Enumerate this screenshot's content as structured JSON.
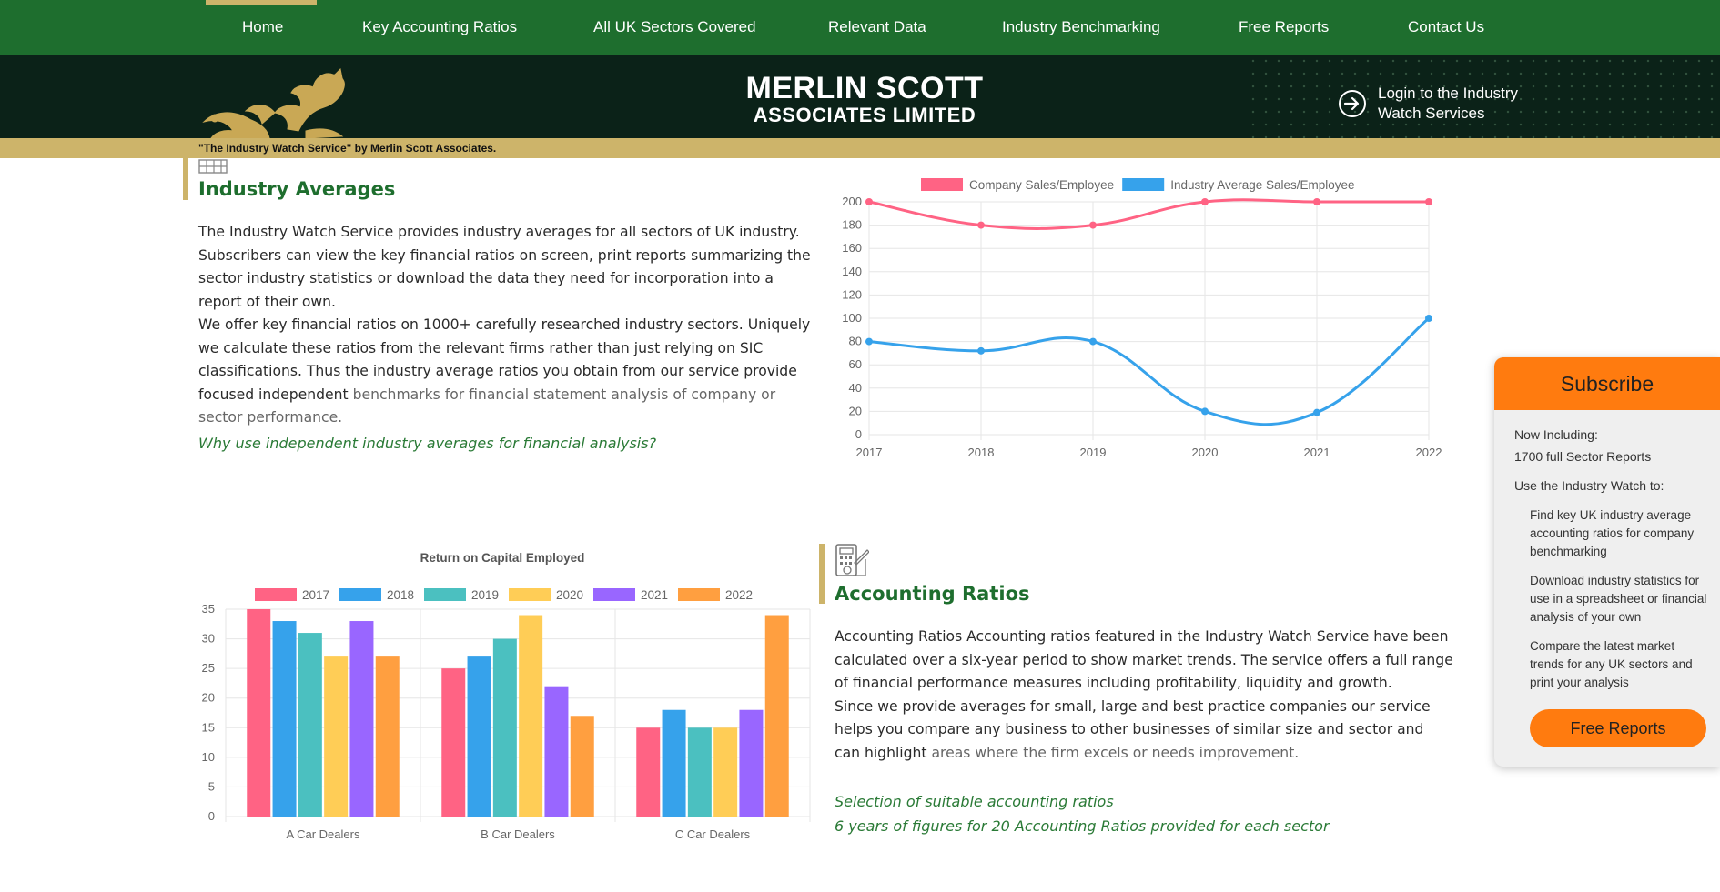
{
  "nav": {
    "items": [
      "Home",
      "Key Accounting Ratios",
      "All UK Sectors Covered",
      "Relevant Data",
      "Industry Benchmarking",
      "Free Reports",
      "Contact Us"
    ],
    "active": "Home"
  },
  "brand": {
    "name_line1": "MERLIN SCOTT",
    "name_line2": "ASSOCIATES LIMITED",
    "login": "Login to the Industry Watch Services",
    "login_line1": "Login to the Industry",
    "login_line2": "Watch Services",
    "tagline": "\"The Industry Watch Service\" by Merlin Scott Associates."
  },
  "industry_averages": {
    "title": "Industry Averages",
    "para1": "The Industry Watch Service provides industry averages for all sectors of UK industry. Subscribers can view the key financial ratios on screen, print reports summarizing the sector industry statistics or download the data they need for incorporation into a report of their own.",
    "para2_main": "We offer key financial ratios on 1000+ carefully researched industry sectors. Uniquely we calculate these ratios from the relevant firms rather than just relying on SIC classifications. Thus the industry average ratios you obtain from our service provide focused independent",
    "para2_muted": "benchmarks for financial statement analysis of company or sector performance.",
    "link": "Why use independent industry averages for financial analysis?"
  },
  "accounting_ratios": {
    "title": "Accounting Ratios",
    "para1": "Accounting Ratios Accounting ratios featured in the Industry Watch Service have been calculated over a six-year period to show market trends. The service offers a full range of financial performance measures including profitability, liquidity and growth.",
    "para2_main": "Since we provide averages for small, large and best practice companies our service helps you compare any business to other businesses of similar size and sector and can highlight",
    "para2_muted": "areas where the firm excels or needs improvement.",
    "link1": "Selection of suitable accounting ratios",
    "link2": "6 years of figures for 20 Accounting Ratios provided for each sector"
  },
  "subscribe": {
    "title": "Subscribe",
    "now_including": "Now Including:",
    "reports": "1700 full Sector Reports",
    "use_to": "Use the Industry Watch to:",
    "items": [
      "Find key UK industry average accounting ratios for company benchmarking",
      "Download industry statistics for use in a spreadsheet or financial analysis of your own",
      "Compare the latest market trends for any UK sectors and print your analysis"
    ],
    "button": "Free Reports"
  },
  "colors": {
    "nav_green": "#1e6e2e",
    "dark_green": "#0b2218",
    "gold": "#cdb46a",
    "orange": "#ff7b0f",
    "pink": "#ff6384",
    "blue": "#36a2eb"
  },
  "chart_data": [
    {
      "type": "line",
      "x": [
        "2017",
        "2018",
        "2019",
        "2020",
        "2021",
        "2022"
      ],
      "series": [
        {
          "name": "Company Sales/Employee",
          "values": [
            200,
            180,
            180,
            200,
            200,
            200
          ],
          "color": "#ff6384"
        },
        {
          "name": "Industry Average Sales/Employee",
          "values": [
            80,
            72,
            80,
            20,
            19,
            100
          ],
          "color": "#36a2eb"
        }
      ],
      "ylim": [
        0,
        200
      ],
      "yticks": [
        0,
        20,
        40,
        60,
        80,
        100,
        120,
        140,
        160,
        180,
        200
      ],
      "grid": true,
      "legend": "top"
    },
    {
      "type": "bar",
      "title": "Return on Capital Employed",
      "categories": [
        "A Car Dealers",
        "B Car Dealers",
        "C Car Dealers"
      ],
      "series": [
        {
          "name": "2017",
          "values": [
            35,
            25,
            15
          ],
          "color": "#ff6384"
        },
        {
          "name": "2018",
          "values": [
            33,
            27,
            18
          ],
          "color": "#36a2eb"
        },
        {
          "name": "2019",
          "values": [
            31,
            30,
            15
          ],
          "color": "#4bc0c0"
        },
        {
          "name": "2020",
          "values": [
            27,
            34,
            15
          ],
          "color": "#ffcd56"
        },
        {
          "name": "2021",
          "values": [
            33,
            22,
            18
          ],
          "color": "#9966ff"
        },
        {
          "name": "2022",
          "values": [
            27,
            17,
            34
          ],
          "color": "#ff9f40"
        }
      ],
      "ylim": [
        0,
        35
      ],
      "yticks": [
        0,
        5,
        10,
        15,
        20,
        25,
        30,
        35
      ],
      "grid": true,
      "legend": "top"
    }
  ]
}
